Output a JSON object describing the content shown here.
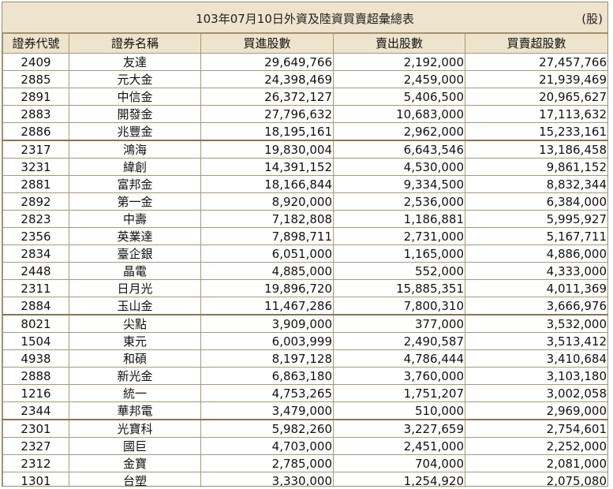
{
  "header": {
    "title": "103年07月10日外資及陸資買賣超彙總表",
    "unit": "(股)"
  },
  "columns": [
    "證券代號",
    "證券名稱",
    "買進股數",
    "賣出股數",
    "買賣超股數"
  ],
  "rows": [
    [
      "2409",
      "友達",
      "29,649,766",
      "2,192,000",
      "27,457,766"
    ],
    [
      "2885",
      "元大金",
      "24,398,469",
      "2,459,000",
      "21,939,469"
    ],
    [
      "2891",
      "中信金",
      "26,372,127",
      "5,406,500",
      "20,965,627"
    ],
    [
      "2883",
      "開發金",
      "27,796,632",
      "10,683,000",
      "17,113,632"
    ],
    [
      "2886",
      "兆豐金",
      "18,195,161",
      "2,962,000",
      "15,233,161"
    ],
    [
      "2317",
      "鴻海",
      "19,830,004",
      "6,643,546",
      "13,186,458"
    ],
    [
      "3231",
      "緯創",
      "14,391,152",
      "4,530,000",
      "9,861,152"
    ],
    [
      "2881",
      "富邦金",
      "18,166,844",
      "9,334,500",
      "8,832,344"
    ],
    [
      "2892",
      "第一金",
      "8,920,000",
      "2,536,000",
      "6,384,000"
    ],
    [
      "2823",
      "中壽",
      "7,182,808",
      "1,186,881",
      "5,995,927"
    ],
    [
      "2356",
      "英業達",
      "7,898,711",
      "2,731,000",
      "5,167,711"
    ],
    [
      "2834",
      "臺企銀",
      "6,051,000",
      "1,165,000",
      "4,886,000"
    ],
    [
      "2448",
      "晶電",
      "4,885,000",
      "552,000",
      "4,333,000"
    ],
    [
      "2311",
      "日月光",
      "19,896,720",
      "15,885,351",
      "4,011,369"
    ],
    [
      "2884",
      "玉山金",
      "11,467,286",
      "7,800,310",
      "3,666,976"
    ],
    [
      "8021",
      "尖點",
      "3,909,000",
      "377,000",
      "3,532,000"
    ],
    [
      "1504",
      "東元",
      "6,003,999",
      "2,490,587",
      "3,513,412"
    ],
    [
      "4938",
      "和碩",
      "8,197,128",
      "4,786,444",
      "3,410,684"
    ],
    [
      "2888",
      "新光金",
      "6,863,180",
      "3,760,000",
      "3,103,180"
    ],
    [
      "1216",
      "統一",
      "4,753,265",
      "1,751,207",
      "3,002,058"
    ],
    [
      "2344",
      "華邦電",
      "3,479,000",
      "510,000",
      "2,969,000"
    ],
    [
      "2301",
      "光寶科",
      "5,982,260",
      "3,227,659",
      "2,754,601"
    ],
    [
      "2327",
      "國巨",
      "4,703,000",
      "2,451,000",
      "2,252,000"
    ],
    [
      "2312",
      "金寶",
      "2,785,000",
      "704,000",
      "2,081,000"
    ],
    [
      "1301",
      "台塑",
      "3,330,000",
      "1,254,920",
      "2,075,080"
    ]
  ]
}
